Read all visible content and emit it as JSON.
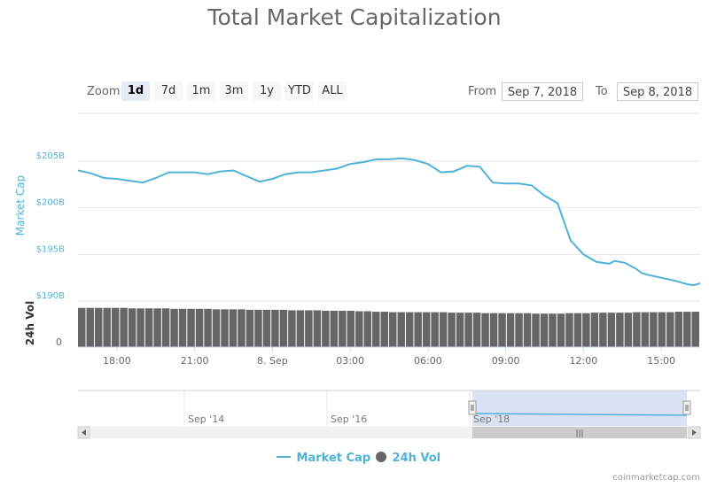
{
  "chart_data": {
    "type": "line",
    "title": "Total Market Capitalization",
    "y_axis_title": "Market Cap",
    "y2_axis_title": "24h Vol",
    "y_ticks": [
      "$205B",
      "$200B",
      "$195B",
      "$190B"
    ],
    "ylim": [
      190,
      205
    ],
    "y_unit": "billion USD",
    "vol_ticks": [
      "0"
    ],
    "x_ticks": [
      "18:00",
      "21:00",
      "8. Sep",
      "03:00",
      "06:00",
      "09:00",
      "12:00",
      "15:00"
    ],
    "xlim": [
      16.5,
      40.5
    ],
    "x_unit": "hours since Sep 7, 2018 00:00",
    "series": [
      {
        "name": "Market Cap",
        "color": "#4fb3d9",
        "x": [
          16.5,
          17.0,
          17.5,
          18.0,
          18.5,
          19.0,
          19.5,
          20.0,
          20.5,
          21.0,
          21.5,
          22.0,
          22.5,
          23.0,
          23.5,
          24.0,
          24.5,
          25.0,
          25.5,
          26.0,
          26.5,
          27.0,
          27.5,
          28.0,
          28.5,
          29.0,
          29.5,
          30.0,
          30.5,
          31.0,
          31.5,
          32.0,
          32.5,
          33.0,
          33.5,
          34.0,
          34.5,
          35.0,
          35.5,
          36.0,
          36.5,
          37.0,
          37.2,
          37.4,
          37.6,
          37.8,
          38.0,
          38.25,
          38.5,
          39.0,
          39.5,
          40.0,
          40.25,
          40.5
        ],
        "values": [
          204.0,
          203.7,
          203.2,
          203.1,
          202.9,
          202.7,
          203.2,
          203.8,
          203.8,
          203.8,
          203.6,
          203.9,
          204.0,
          203.4,
          202.8,
          203.1,
          203.6,
          203.8,
          203.8,
          204.0,
          204.2,
          204.7,
          204.9,
          205.2,
          205.2,
          205.3,
          205.1,
          204.7,
          203.8,
          203.9,
          204.5,
          204.4,
          202.7,
          202.6,
          202.6,
          202.4,
          201.3,
          200.5,
          196.5,
          195.0,
          194.2,
          194.0,
          194.3,
          194.2,
          194.1,
          193.8,
          193.5,
          193.0,
          192.8,
          192.5,
          192.2,
          191.8,
          191.7,
          191.9
        ]
      },
      {
        "name": "24h Vol",
        "color": "#666666",
        "x_start": 16.5,
        "x_end": 40.5,
        "values": [
          0.82,
          0.82,
          0.82,
          0.82,
          0.82,
          0.82,
          0.81,
          0.81,
          0.81,
          0.81,
          0.81,
          0.8,
          0.8,
          0.8,
          0.8,
          0.8,
          0.79,
          0.79,
          0.79,
          0.79,
          0.78,
          0.78,
          0.78,
          0.78,
          0.78,
          0.77,
          0.77,
          0.77,
          0.77,
          0.76,
          0.76,
          0.76,
          0.76,
          0.75,
          0.75,
          0.74,
          0.74,
          0.73,
          0.73,
          0.73,
          0.73,
          0.73,
          0.73,
          0.73,
          0.72,
          0.72,
          0.72,
          0.72,
          0.71,
          0.71,
          0.71,
          0.71,
          0.71,
          0.71,
          0.7,
          0.7,
          0.7,
          0.7,
          0.71,
          0.71,
          0.71,
          0.72,
          0.72,
          0.72,
          0.72,
          0.72,
          0.73,
          0.73,
          0.73,
          0.73,
          0.73,
          0.74,
          0.74,
          0.74
        ]
      }
    ],
    "grid": true,
    "legend_position": "bottom-center"
  },
  "toolbar": {
    "zoom_label": "Zoom",
    "buttons": [
      "1d",
      "7d",
      "1m",
      "3m",
      "1y",
      "YTD",
      "ALL"
    ],
    "active": "1d",
    "from_label": "From",
    "from_value": "Sep 7, 2018",
    "to_label": "To",
    "to_value": "Sep 8, 2018"
  },
  "navigator": {
    "labels": [
      "Sep '14",
      "Sep '16",
      "Sep '18"
    ],
    "scrollbar_grip": "|||"
  },
  "legend": {
    "items": [
      {
        "label": "Market Cap",
        "color": "#4fb3d9"
      },
      {
        "label": "24h Vol",
        "color": "#666666"
      }
    ]
  },
  "credit": "coinmarketcap.com",
  "colors": {
    "accent": "#4fb3d9",
    "selection": "#d6dff2",
    "volume": "#666666"
  }
}
